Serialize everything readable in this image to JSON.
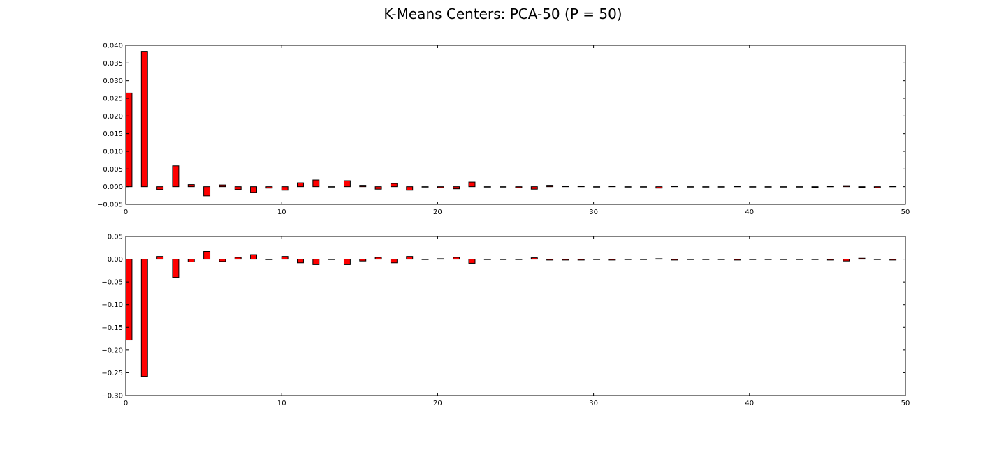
{
  "title": "K-Means Centers: PCA-50 (P = 50)",
  "colors": {
    "bar_fill": "#ff0000",
    "bar_edge": "#000000",
    "background": "#ffffff"
  },
  "chart_data": [
    {
      "type": "bar",
      "title": "",
      "xlabel": "",
      "ylabel": "",
      "xlim": [
        0,
        50
      ],
      "ylim": [
        -0.005,
        0.04
      ],
      "grid": false,
      "legend": "none",
      "x_ticks": [
        0,
        10,
        20,
        30,
        40,
        50
      ],
      "y_ticks": [
        -0.005,
        0.0,
        0.005,
        0.01,
        0.015,
        0.02,
        0.025,
        0.03,
        0.035,
        0.04
      ],
      "x_tick_labels": [
        "0",
        "10",
        "20",
        "30",
        "40",
        "50"
      ],
      "y_tick_labels": [
        "−0.005",
        "0.000",
        "0.005",
        "0.010",
        "0.015",
        "0.020",
        "0.025",
        "0.030",
        "0.035",
        "0.040"
      ],
      "x": [
        0,
        1,
        2,
        3,
        4,
        5,
        6,
        7,
        8,
        9,
        10,
        11,
        12,
        13,
        14,
        15,
        16,
        17,
        18,
        19,
        20,
        21,
        22,
        23,
        24,
        25,
        26,
        27,
        28,
        29,
        30,
        31,
        32,
        33,
        34,
        35,
        36,
        37,
        38,
        39,
        40,
        41,
        42,
        43,
        44,
        45,
        46,
        47,
        48,
        49
      ],
      "values": [
        0.0265,
        0.0383,
        -0.0008,
        0.0059,
        0.0006,
        -0.0026,
        0.0005,
        -0.0008,
        -0.0016,
        -0.0004,
        -0.001,
        0.0011,
        0.0019,
        0.0,
        0.0017,
        0.0004,
        -0.0007,
        0.0009,
        -0.001,
        -0.0001,
        -0.0003,
        -0.0006,
        0.0013,
        0.0,
        0.0,
        -0.0003,
        -0.0007,
        0.0004,
        0.0002,
        0.0002,
        0.0,
        0.0002,
        0.0,
        0.0,
        -0.0004,
        0.0002,
        0.0,
        0.0,
        0.0,
        0.0001,
        0.0,
        0.0,
        0.0,
        0.0,
        -0.0002,
        0.0001,
        0.0003,
        -0.0002,
        -0.0003,
        0.0001
      ]
    },
    {
      "type": "bar",
      "title": "",
      "xlabel": "",
      "ylabel": "",
      "xlim": [
        0,
        50
      ],
      "ylim": [
        -0.3,
        0.05
      ],
      "grid": false,
      "legend": "none",
      "x_ticks": [
        0,
        10,
        20,
        30,
        40,
        50
      ],
      "y_ticks": [
        -0.3,
        -0.25,
        -0.2,
        -0.15,
        -0.1,
        -0.05,
        0.0,
        0.05
      ],
      "x_tick_labels": [
        "0",
        "10",
        "20",
        "30",
        "40",
        "50"
      ],
      "y_tick_labels": [
        "−0.30",
        "−0.25",
        "−0.20",
        "−0.15",
        "−0.10",
        "−0.05",
        "0.00",
        "0.05"
      ],
      "x": [
        0,
        1,
        2,
        3,
        4,
        5,
        6,
        7,
        8,
        9,
        10,
        11,
        12,
        13,
        14,
        15,
        16,
        17,
        18,
        19,
        20,
        21,
        22,
        23,
        24,
        25,
        26,
        27,
        28,
        29,
        30,
        31,
        32,
        33,
        34,
        35,
        36,
        37,
        38,
        39,
        40,
        41,
        42,
        43,
        44,
        45,
        46,
        47,
        48,
        49
      ],
      "values": [
        -0.178,
        -0.258,
        0.006,
        -0.04,
        -0.006,
        0.017,
        -0.005,
        0.004,
        0.01,
        -0.001,
        0.006,
        -0.008,
        -0.012,
        0.0,
        -0.012,
        -0.004,
        0.004,
        -0.008,
        0.006,
        0.0,
        0.001,
        0.004,
        -0.009,
        0.0,
        0.0,
        0.0,
        0.003,
        -0.002,
        -0.002,
        -0.002,
        0.0,
        -0.002,
        0.0,
        0.0,
        0.001,
        -0.002,
        0.0,
        0.0,
        0.0,
        -0.002,
        0.0,
        0.0,
        0.0,
        0.0,
        0.0,
        -0.002,
        -0.004,
        0.002,
        0.0,
        -0.002
      ]
    }
  ]
}
